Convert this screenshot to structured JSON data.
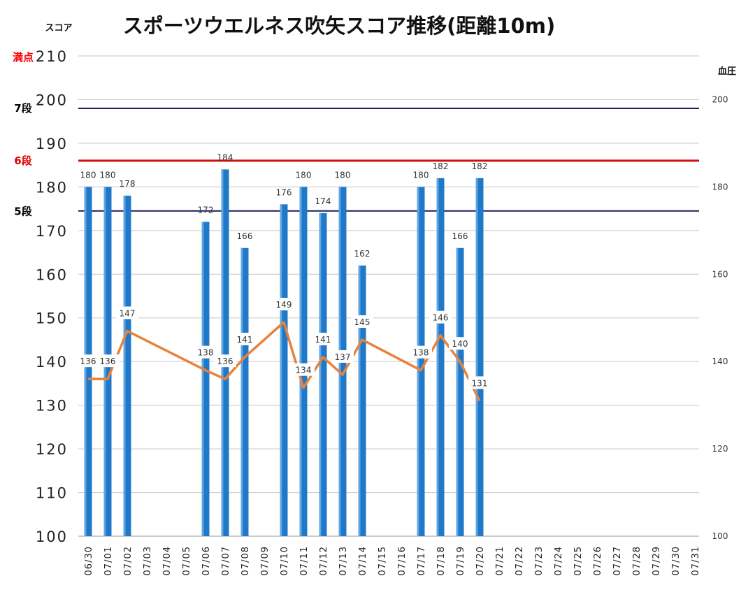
{
  "chart_data": {
    "type": "bar",
    "title": "スポーツウエルネス吹矢スコア推移(距離10m)",
    "ylabel": "スコア",
    "y2label": "血圧",
    "ylim": [
      100,
      210
    ],
    "y2lim": [
      100,
      210
    ],
    "yticks": [
      "100",
      "110",
      "120",
      "130",
      "140",
      "150",
      "160",
      "170",
      "180",
      "190",
      "200",
      "210"
    ],
    "y2ticks": [
      "100",
      "120",
      "140",
      "160",
      "180",
      "200"
    ],
    "grid": true,
    "categories": [
      "06/30",
      "07/01",
      "07/02",
      "07/03",
      "07/04",
      "07/05",
      "07/06",
      "07/07",
      "07/08",
      "07/09",
      "07/10",
      "07/11",
      "07/12",
      "07/13",
      "07/14",
      "07/15",
      "07/16",
      "07/17",
      "07/18",
      "07/19",
      "07/20",
      "07/21",
      "07/22",
      "07/23",
      "07/24",
      "07/25",
      "07/26",
      "07/27",
      "07/28",
      "07/29",
      "07/30",
      "07/31"
    ],
    "series": [
      {
        "kind": "bar",
        "axis": "left",
        "color": "#1f78c8",
        "values": [
          180,
          180,
          178,
          null,
          null,
          null,
          172,
          184,
          166,
          null,
          176,
          180,
          174,
          180,
          162,
          null,
          null,
          180,
          182,
          166,
          182,
          null,
          null,
          null,
          null,
          null,
          null,
          null,
          null,
          null,
          null,
          null
        ]
      },
      {
        "kind": "line",
        "axis": "right",
        "color": "#e8823c",
        "values": [
          136,
          136,
          147,
          null,
          null,
          null,
          138,
          136,
          141,
          null,
          149,
          134,
          141,
          137,
          145,
          null,
          null,
          138,
          146,
          140,
          131,
          null,
          null,
          null,
          null,
          null,
          null,
          null,
          null,
          null,
          null,
          null
        ]
      }
    ],
    "reference_lines": [
      {
        "label": "満点",
        "value": 210,
        "color": "#ff0000",
        "line": false
      },
      {
        "label": "7段",
        "value": 198,
        "color": "#000000",
        "line_color": "#1a1f5e",
        "line": true
      },
      {
        "label": "6段",
        "value": 186,
        "color": "#e00000",
        "line_color": "#d01010",
        "line": true
      },
      {
        "label": "5段",
        "value": 174.5,
        "color": "#000000",
        "line_color": "#1a1f5e",
        "line": true
      }
    ]
  }
}
